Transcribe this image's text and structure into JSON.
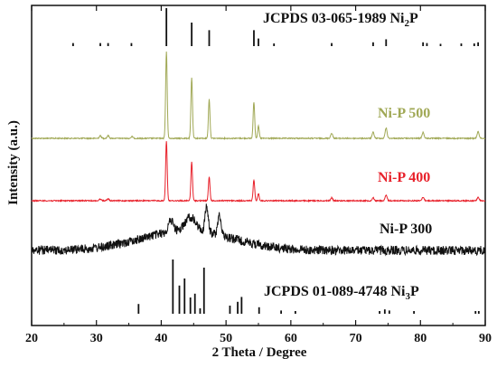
{
  "chart_data": {
    "type": "line",
    "xlabel": "2 Theta / Degree",
    "ylabel": "Intensity (a.u.)",
    "xlim": [
      20,
      90
    ],
    "x_ticks": [
      20,
      30,
      40,
      50,
      60,
      70,
      80,
      90
    ],
    "y_ticks_labeled": false,
    "grid": false,
    "legend": "none",
    "references": [
      {
        "label": "JCPDS 03-065-1989 Ni",
        "label_sub": "2",
        "label_suffix": "P",
        "sticks": [
          {
            "x": 26.4,
            "h": 0.08
          },
          {
            "x": 30.6,
            "h": 0.08
          },
          {
            "x": 31.8,
            "h": 0.08
          },
          {
            "x": 35.4,
            "h": 0.08
          },
          {
            "x": 40.8,
            "h": 1.0
          },
          {
            "x": 44.7,
            "h": 0.62
          },
          {
            "x": 47.4,
            "h": 0.42
          },
          {
            "x": 54.3,
            "h": 0.42
          },
          {
            "x": 55.0,
            "h": 0.2
          },
          {
            "x": 57.4,
            "h": 0.07
          },
          {
            "x": 66.3,
            "h": 0.08
          },
          {
            "x": 72.7,
            "h": 0.1
          },
          {
            "x": 74.7,
            "h": 0.18
          },
          {
            "x": 80.4,
            "h": 0.1
          },
          {
            "x": 81.0,
            "h": 0.08
          },
          {
            "x": 83.1,
            "h": 0.06
          },
          {
            "x": 86.3,
            "h": 0.07
          },
          {
            "x": 88.3,
            "h": 0.07
          },
          {
            "x": 88.9,
            "h": 0.1
          }
        ]
      },
      {
        "label": "JCPDS 01-089-4748 Ni",
        "label_sub": "3",
        "label_suffix": "P",
        "sticks": [
          {
            "x": 36.5,
            "h": 0.18
          },
          {
            "x": 41.8,
            "h": 1.0
          },
          {
            "x": 42.8,
            "h": 0.52
          },
          {
            "x": 43.6,
            "h": 0.65
          },
          {
            "x": 44.5,
            "h": 0.3
          },
          {
            "x": 45.2,
            "h": 0.37
          },
          {
            "x": 46.0,
            "h": 0.1
          },
          {
            "x": 46.6,
            "h": 0.85
          },
          {
            "x": 50.6,
            "h": 0.15
          },
          {
            "x": 51.8,
            "h": 0.22
          },
          {
            "x": 52.4,
            "h": 0.31
          },
          {
            "x": 55.1,
            "h": 0.12
          },
          {
            "x": 58.5,
            "h": 0.06
          },
          {
            "x": 60.7,
            "h": 0.05
          },
          {
            "x": 73.7,
            "h": 0.05
          },
          {
            "x": 74.5,
            "h": 0.08
          },
          {
            "x": 75.2,
            "h": 0.06
          },
          {
            "x": 79.0,
            "h": 0.05
          },
          {
            "x": 88.5,
            "h": 0.05
          },
          {
            "x": 89.0,
            "h": 0.05
          }
        ]
      }
    ],
    "series": [
      {
        "name": "Ni-P 500",
        "color": "#a0a855",
        "peaks": [
          {
            "x": 30.6,
            "h": 0.03,
            "w": 0.15
          },
          {
            "x": 31.8,
            "h": 0.03,
            "w": 0.15
          },
          {
            "x": 35.5,
            "h": 0.02,
            "w": 0.15
          },
          {
            "x": 40.8,
            "h": 1.0,
            "w": 0.12
          },
          {
            "x": 44.7,
            "h": 0.7,
            "w": 0.12
          },
          {
            "x": 47.4,
            "h": 0.45,
            "w": 0.12
          },
          {
            "x": 54.3,
            "h": 0.42,
            "w": 0.12
          },
          {
            "x": 55.0,
            "h": 0.14,
            "w": 0.12
          },
          {
            "x": 66.3,
            "h": 0.06,
            "w": 0.15
          },
          {
            "x": 72.7,
            "h": 0.07,
            "w": 0.15
          },
          {
            "x": 74.7,
            "h": 0.12,
            "w": 0.15
          },
          {
            "x": 80.4,
            "h": 0.07,
            "w": 0.15
          },
          {
            "x": 88.9,
            "h": 0.08,
            "w": 0.15
          }
        ]
      },
      {
        "name": "Ni-P 400",
        "color": "#e8202a",
        "peaks": [
          {
            "x": 30.6,
            "h": 0.03,
            "w": 0.15
          },
          {
            "x": 31.8,
            "h": 0.03,
            "w": 0.15
          },
          {
            "x": 40.8,
            "h": 1.0,
            "w": 0.12
          },
          {
            "x": 44.7,
            "h": 0.65,
            "w": 0.12
          },
          {
            "x": 47.4,
            "h": 0.4,
            "w": 0.12
          },
          {
            "x": 54.3,
            "h": 0.35,
            "w": 0.12
          },
          {
            "x": 55.0,
            "h": 0.12,
            "w": 0.12
          },
          {
            "x": 66.3,
            "h": 0.05,
            "w": 0.15
          },
          {
            "x": 72.7,
            "h": 0.05,
            "w": 0.15
          },
          {
            "x": 74.7,
            "h": 0.09,
            "w": 0.15
          },
          {
            "x": 80.4,
            "h": 0.06,
            "w": 0.15
          },
          {
            "x": 88.9,
            "h": 0.06,
            "w": 0.15
          }
        ]
      },
      {
        "name": "Ni-P 300",
        "color": "#111111",
        "peaks": [
          {
            "x": 44.5,
            "h": 0.3,
            "w": 0.8
          },
          {
            "x": 47.0,
            "h": 0.55,
            "w": 0.25
          },
          {
            "x": 49.0,
            "h": 0.45,
            "w": 0.25
          },
          {
            "x": 41.5,
            "h": 0.25,
            "w": 0.4
          }
        ]
      }
    ]
  }
}
